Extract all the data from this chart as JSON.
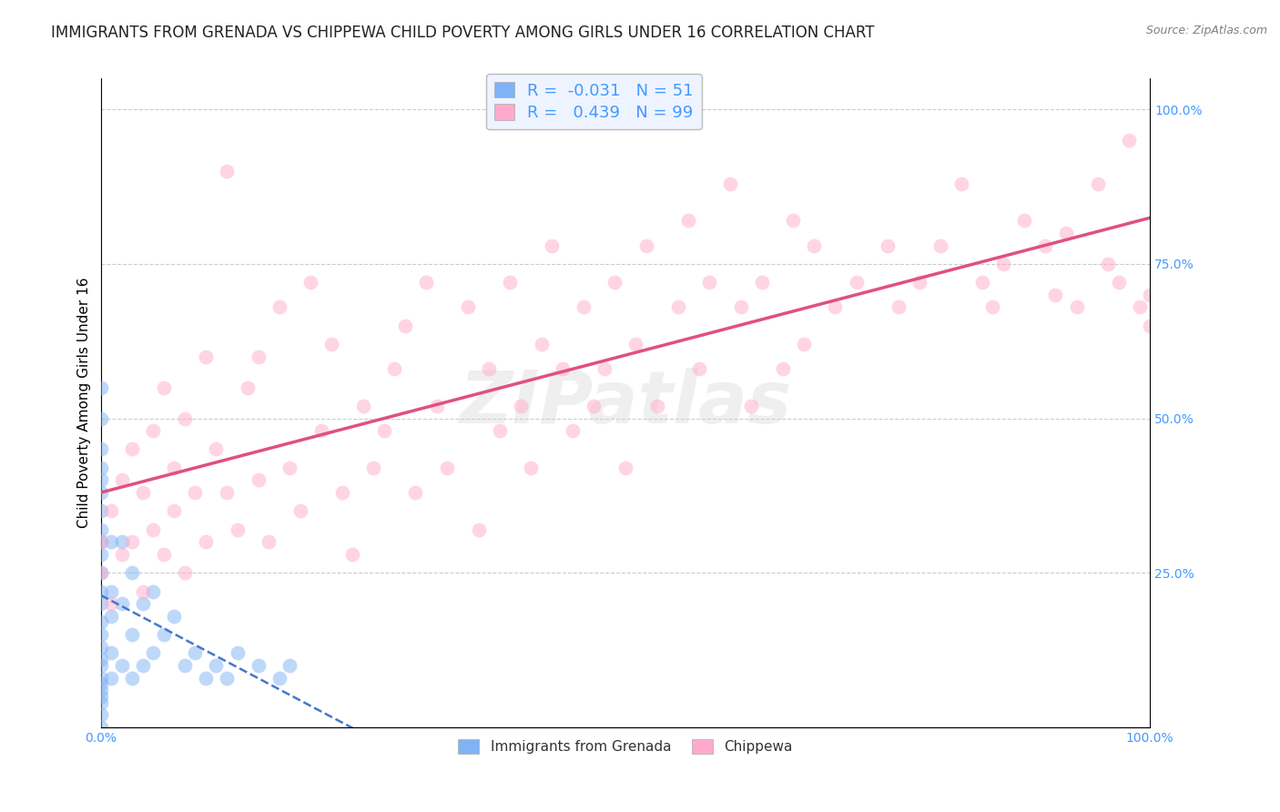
{
  "title": "IMMIGRANTS FROM GRENADA VS CHIPPEWA CHILD POVERTY AMONG GIRLS UNDER 16 CORRELATION CHART",
  "source": "Source: ZipAtlas.com",
  "ylabel": "Child Poverty Among Girls Under 16",
  "watermark": "ZIPatlas",
  "series": [
    {
      "name": "Immigrants from Grenada",
      "R": -0.031,
      "N": 51,
      "color": "#7fb3f5",
      "trend_color": "#4477cc",
      "trend_dash": "dashed",
      "x": [
        0.0,
        0.0,
        0.0,
        0.0,
        0.0,
        0.0,
        0.0,
        0.0,
        0.0,
        0.0,
        0.0,
        0.0,
        0.0,
        0.0,
        0.0,
        0.0,
        0.0,
        0.0,
        0.0,
        0.0,
        0.0,
        0.0,
        0.0,
        0.0,
        0.0,
        0.01,
        0.01,
        0.01,
        0.01,
        0.01,
        0.02,
        0.02,
        0.02,
        0.03,
        0.03,
        0.03,
        0.04,
        0.04,
        0.05,
        0.05,
        0.06,
        0.07,
        0.08,
        0.09,
        0.1,
        0.11,
        0.12,
        0.13,
        0.15,
        0.17,
        0.18
      ],
      "y": [
        0.0,
        0.02,
        0.04,
        0.05,
        0.06,
        0.07,
        0.08,
        0.1,
        0.11,
        0.13,
        0.15,
        0.17,
        0.2,
        0.22,
        0.25,
        0.28,
        0.3,
        0.32,
        0.35,
        0.38,
        0.4,
        0.42,
        0.45,
        0.5,
        0.55,
        0.08,
        0.12,
        0.18,
        0.22,
        0.3,
        0.1,
        0.2,
        0.3,
        0.08,
        0.15,
        0.25,
        0.1,
        0.2,
        0.12,
        0.22,
        0.15,
        0.18,
        0.1,
        0.12,
        0.08,
        0.1,
        0.08,
        0.12,
        0.1,
        0.08,
        0.1
      ]
    },
    {
      "name": "Chippewa",
      "R": 0.439,
      "N": 99,
      "color": "#ffaacc",
      "trend_color": "#e05080",
      "trend_dash": "solid",
      "x": [
        0.0,
        0.0,
        0.01,
        0.01,
        0.02,
        0.02,
        0.03,
        0.03,
        0.04,
        0.04,
        0.05,
        0.05,
        0.06,
        0.06,
        0.07,
        0.07,
        0.08,
        0.08,
        0.09,
        0.1,
        0.1,
        0.11,
        0.12,
        0.12,
        0.13,
        0.14,
        0.15,
        0.15,
        0.16,
        0.17,
        0.18,
        0.19,
        0.2,
        0.21,
        0.22,
        0.23,
        0.24,
        0.25,
        0.26,
        0.27,
        0.28,
        0.29,
        0.3,
        0.31,
        0.32,
        0.33,
        0.35,
        0.36,
        0.37,
        0.38,
        0.39,
        0.4,
        0.41,
        0.42,
        0.43,
        0.44,
        0.45,
        0.46,
        0.47,
        0.48,
        0.49,
        0.5,
        0.51,
        0.52,
        0.53,
        0.55,
        0.56,
        0.57,
        0.58,
        0.6,
        0.61,
        0.62,
        0.63,
        0.65,
        0.66,
        0.67,
        0.68,
        0.7,
        0.72,
        0.75,
        0.76,
        0.78,
        0.8,
        0.82,
        0.84,
        0.85,
        0.86,
        0.88,
        0.9,
        0.91,
        0.92,
        0.93,
        0.95,
        0.96,
        0.97,
        0.98,
        0.99,
        1.0,
        1.0
      ],
      "y": [
        0.25,
        0.3,
        0.2,
        0.35,
        0.28,
        0.4,
        0.3,
        0.45,
        0.22,
        0.38,
        0.32,
        0.48,
        0.28,
        0.55,
        0.35,
        0.42,
        0.25,
        0.5,
        0.38,
        0.6,
        0.3,
        0.45,
        0.9,
        0.38,
        0.32,
        0.55,
        0.4,
        0.6,
        0.3,
        0.68,
        0.42,
        0.35,
        0.72,
        0.48,
        0.62,
        0.38,
        0.28,
        0.52,
        0.42,
        0.48,
        0.58,
        0.65,
        0.38,
        0.72,
        0.52,
        0.42,
        0.68,
        0.32,
        0.58,
        0.48,
        0.72,
        0.52,
        0.42,
        0.62,
        0.78,
        0.58,
        0.48,
        0.68,
        0.52,
        0.58,
        0.72,
        0.42,
        0.62,
        0.78,
        0.52,
        0.68,
        0.82,
        0.58,
        0.72,
        0.88,
        0.68,
        0.52,
        0.72,
        0.58,
        0.82,
        0.62,
        0.78,
        0.68,
        0.72,
        0.78,
        0.68,
        0.72,
        0.78,
        0.88,
        0.72,
        0.68,
        0.75,
        0.82,
        0.78,
        0.7,
        0.8,
        0.68,
        0.88,
        0.75,
        0.72,
        0.95,
        0.68,
        0.7,
        0.65
      ]
    }
  ],
  "xlim": [
    0.0,
    1.0
  ],
  "ylim": [
    0.0,
    1.05
  ],
  "xticks": [
    0.0,
    0.25,
    0.5,
    0.75,
    1.0
  ],
  "xtick_labels": [
    "0.0%",
    "",
    "",
    "",
    "100.0%"
  ],
  "yticks": [
    0.0,
    0.25,
    0.5,
    0.75,
    1.0
  ],
  "ytick_labels_right": [
    "",
    "25.0%",
    "50.0%",
    "75.0%",
    "100.0%"
  ],
  "grid_color": "#cccccc",
  "background_color": "#ffffff",
  "legend_box_color": "#eef4ff",
  "marker_size": 130,
  "marker_alpha": 0.5,
  "title_fontsize": 12,
  "label_fontsize": 11,
  "tick_color": "#4499ff"
}
